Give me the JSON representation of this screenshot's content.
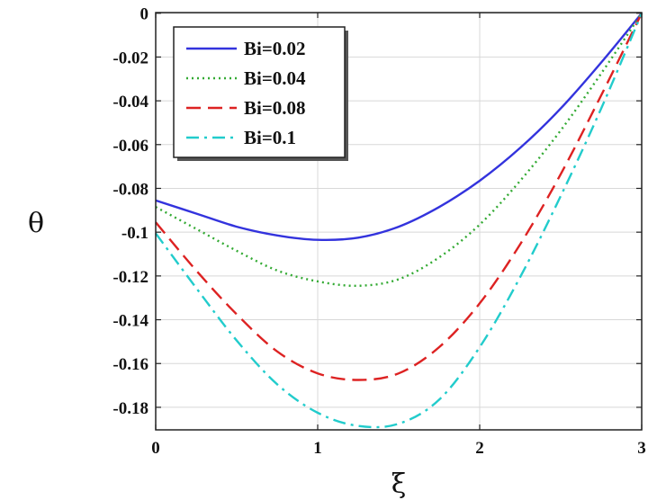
{
  "chart_data": {
    "type": "line",
    "title": "",
    "xlabel": "ξ",
    "ylabel": "θ",
    "xlim": [
      0,
      3
    ],
    "ylim": [
      -0.19,
      0
    ],
    "grid": true,
    "legend_position": "top-left",
    "x_ticks": [
      {
        "value": 0,
        "label": "0"
      },
      {
        "value": 1,
        "label": "1"
      },
      {
        "value": 2,
        "label": "2"
      },
      {
        "value": 3,
        "label": "3"
      }
    ],
    "y_ticks": [
      {
        "value": 0,
        "label": "0"
      },
      {
        "value": -0.02,
        "label": "-0.02"
      },
      {
        "value": -0.04,
        "label": "-0.04"
      },
      {
        "value": -0.06,
        "label": "-0.06"
      },
      {
        "value": -0.08,
        "label": "-0.08"
      },
      {
        "value": -0.1,
        "label": "-0.1"
      },
      {
        "value": -0.12,
        "label": "-0.12"
      },
      {
        "value": -0.14,
        "label": "-0.14"
      },
      {
        "value": -0.16,
        "label": "-0.16"
      },
      {
        "value": -0.18,
        "label": "-0.18"
      }
    ],
    "x": [
      0,
      0.25,
      0.5,
      0.75,
      1.0,
      1.25,
      1.5,
      1.75,
      2.0,
      2.25,
      2.5,
      2.75,
      3.0
    ],
    "series": [
      {
        "name": "Bi=0.02",
        "color": "#3333dd",
        "dash": "solid",
        "values": [
          -0.0855,
          -0.0915,
          -0.0975,
          -0.1015,
          -0.1035,
          -0.1025,
          -0.0975,
          -0.0885,
          -0.0765,
          -0.0615,
          -0.0435,
          -0.0225,
          0
        ]
      },
      {
        "name": "Bi=0.04",
        "color": "#33aa33",
        "dash": "dotted",
        "values": [
          -0.0885,
          -0.0985,
          -0.1085,
          -0.1175,
          -0.1225,
          -0.1245,
          -0.1215,
          -0.1115,
          -0.0965,
          -0.0765,
          -0.0535,
          -0.0275,
          0
        ]
      },
      {
        "name": "Bi=0.08",
        "color": "#dd2222",
        "dash": "dashed",
        "values": [
          -0.0955,
          -0.1175,
          -0.1375,
          -0.1545,
          -0.1645,
          -0.1675,
          -0.1645,
          -0.1525,
          -0.1325,
          -0.1055,
          -0.0735,
          -0.0375,
          0
        ]
      },
      {
        "name": "Bi=0.1",
        "color": "#22cccc",
        "dash": "dashdot",
        "values": [
          -0.1005,
          -0.1255,
          -0.1495,
          -0.1695,
          -0.1825,
          -0.1885,
          -0.1875,
          -0.1765,
          -0.1525,
          -0.1205,
          -0.0835,
          -0.0435,
          0
        ]
      }
    ]
  }
}
